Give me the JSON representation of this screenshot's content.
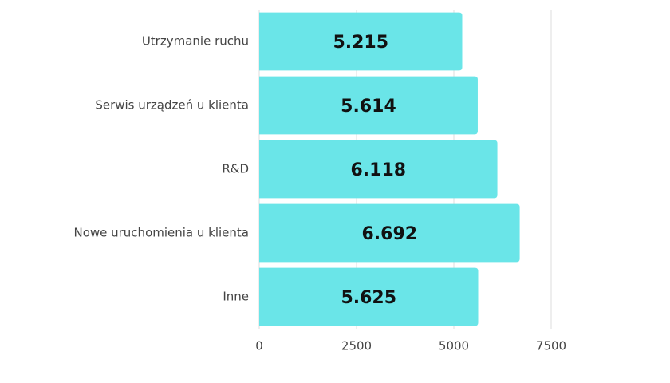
{
  "chart_data": {
    "type": "barh",
    "categories": [
      "Utrzymanie ruchu",
      "Serwis urządzeń u klienta",
      "R&D",
      "Nowe uruchomienia u klienta",
      "Inne"
    ],
    "values": [
      5215,
      5614,
      6118,
      6692,
      5625
    ],
    "value_labels": [
      "5.215",
      "5.614",
      "6.118",
      "6.692",
      "5.625"
    ],
    "color": "#6ae5e8",
    "xlim": [
      0,
      7500
    ],
    "xticks": [
      0,
      2500,
      5000,
      7500
    ],
    "grid": true
  }
}
